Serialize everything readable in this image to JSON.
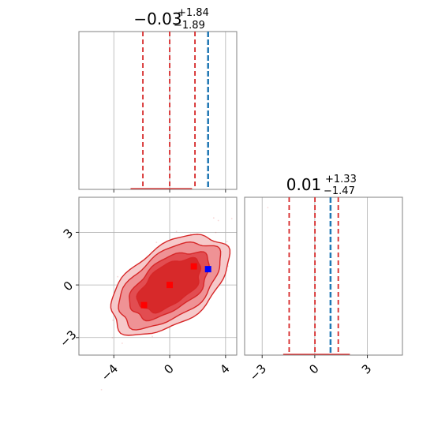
{
  "chart_data": [
    {
      "panel": "marginal-x",
      "type": "histogram",
      "title": {
        "median": "−0.03",
        "plus": "+1.84",
        "minus": "−1.89"
      },
      "xlim": [
        -6.5,
        4.8
      ],
      "quantiles": [
        -1.92,
        0.0,
        1.81
      ],
      "truth": 2.75,
      "bins_x": [
        -2.8,
        1.6
      ],
      "bins_y": [
        0.01,
        0.01
      ]
    },
    {
      "panel": "joint",
      "type": "scatter",
      "xlim": [
        -6.5,
        4.8
      ],
      "ylim": [
        -4.0,
        5.0
      ],
      "x_ticks": [
        "−4",
        "0",
        "4"
      ],
      "x_tick_values": [
        -4,
        0,
        4
      ],
      "y_ticks": [
        "−3",
        "0",
        "3"
      ],
      "y_tick_values": [
        -3,
        0,
        3
      ],
      "quantile_markers": [
        {
          "x": -1.84,
          "y": -1.15,
          "color": "#ff0000"
        },
        {
          "x": 0.0,
          "y": 0.0,
          "color": "#ff0000"
        },
        {
          "x": 1.73,
          "y": 1.06,
          "color": "#ff0000"
        }
      ],
      "truth_marker": {
        "x": 2.75,
        "y": 0.9,
        "color": "#0000ff"
      },
      "contour_color": "#d62728"
    },
    {
      "panel": "marginal-y",
      "type": "histogram",
      "title": {
        "median": "0.01",
        "plus": "+1.33",
        "minus": "−1.47"
      },
      "xlim": [
        -4.0,
        5.0
      ],
      "x_ticks": [
        "−3",
        "0",
        "3"
      ],
      "x_tick_values": [
        -3,
        0,
        3
      ],
      "quantiles": [
        -1.46,
        0.01,
        1.34
      ],
      "truth": 0.9
    }
  ],
  "colors": {
    "quantile": "#d62728",
    "truth": "#1f77b4",
    "contour": "#d62728"
  }
}
